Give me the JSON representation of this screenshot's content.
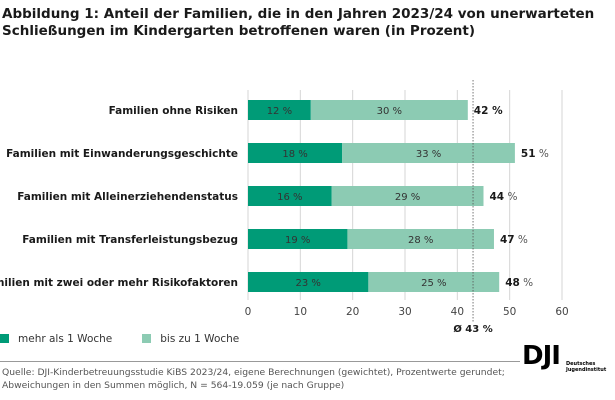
{
  "title": "Abbildung 1: Anteil der Familien, die in den Jahren 2023/24 von unerwarteten Schließungen im Kindergarten betroffenen waren (in Prozent)",
  "chart_data": {
    "type": "bar",
    "orientation": "horizontal",
    "stacked": true,
    "categories": [
      "Familien ohne Risiken",
      "Familien mit Einwanderungsgeschichte",
      "Familien mit Alleinerziehendenstatus",
      "Familien mit Transferleistungsbezug",
      "Familien mit zwei oder mehr Risikofaktoren"
    ],
    "series": [
      {
        "name": "mehr als 1 Woche",
        "values": [
          12,
          18,
          16,
          19,
          23
        ],
        "labels": [
          "12 %",
          "18 %",
          "16 %",
          "19 %",
          "23 %"
        ],
        "color": "#009b77"
      },
      {
        "name": "bis zu 1 Woche",
        "values": [
          30,
          33,
          29,
          28,
          25
        ],
        "labels": [
          "30 %",
          "33 %",
          "29 %",
          "28 %",
          "25 %"
        ],
        "color": "#8ccbb3"
      }
    ],
    "totals": [
      "42",
      "51",
      "44",
      "47",
      "48"
    ],
    "total_unit": "%",
    "xlim": [
      0,
      60
    ],
    "xticks": [
      "0",
      "10",
      "20",
      "30",
      "40",
      "50",
      "60"
    ],
    "grid": true,
    "reference_line": {
      "value": 43,
      "label": "Ø 43 %"
    },
    "legend_position": "bottom-left"
  },
  "source": "Quelle: DJI-Kinderbetreuungsstudie KiBS 2023/24, eigene Berechnungen (gewichtet), Prozentwerte gerundet; Abweichungen in den Summen möglich, N = 564-19.059 (je nach Gruppe)",
  "logo": {
    "mark": "DJI",
    "text": "Deutsches Jugendinstitut"
  }
}
